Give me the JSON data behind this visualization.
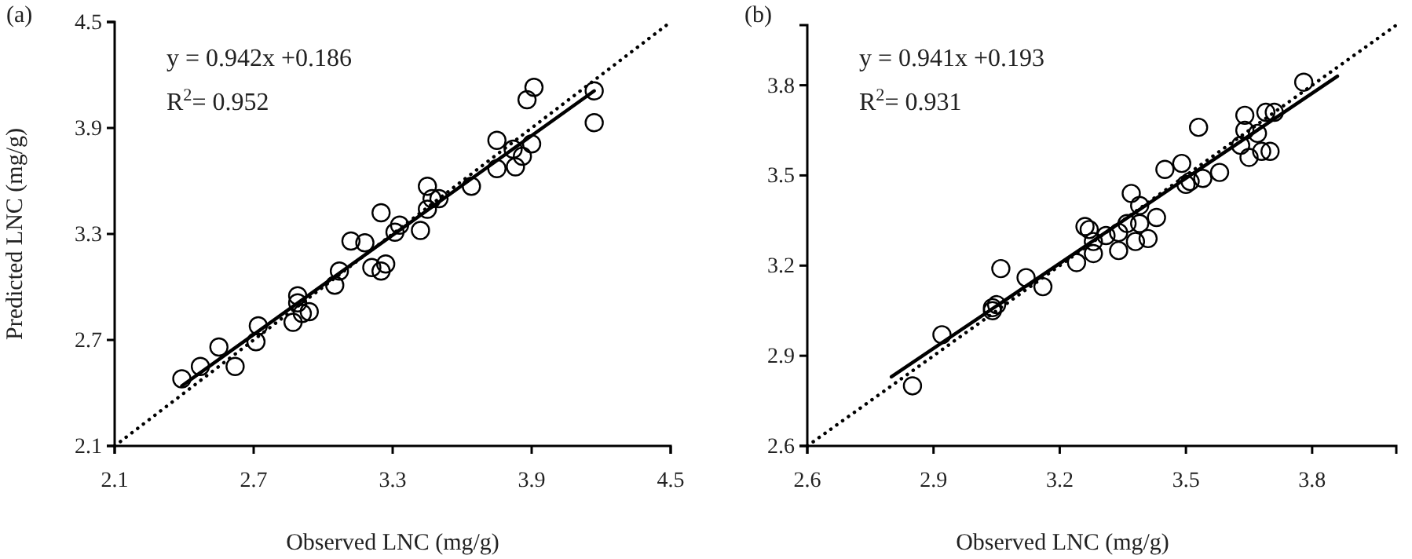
{
  "chart_data": [
    {
      "type": "scatter",
      "xlabel": "Observed LNC (mg/g)",
      "ylabel": "Predicted LNC (mg/g)",
      "xlim": [
        2.1,
        4.5
      ],
      "ylim": [
        2.1,
        4.5
      ],
      "xticks": [
        2.1,
        2.7,
        3.3,
        3.9,
        4.5
      ],
      "yticks": [
        2.1,
        2.7,
        3.3,
        3.9,
        4.5
      ],
      "grid": false,
      "annotations": [
        "(a)",
        "y = 0.942x +0.186",
        "R$^{2}$= 0.952"
      ],
      "series": [
        {
          "marker": "circle",
          "color": "#000000",
          "x": [
            2.39,
            2.47,
            2.55,
            2.62,
            2.71,
            2.72,
            2.87,
            2.89,
            2.89,
            2.91,
            2.94,
            3.05,
            3.07,
            3.12,
            3.18,
            3.25,
            3.21,
            3.27,
            3.25,
            3.31,
            3.33,
            3.42,
            3.45,
            3.45,
            3.47,
            3.5,
            3.64,
            3.75,
            3.75,
            3.82,
            3.83,
            3.86,
            3.9,
            3.88,
            3.91,
            4.17,
            4.17
          ],
          "values": [
            2.48,
            2.55,
            2.66,
            2.55,
            2.69,
            2.78,
            2.8,
            2.95,
            2.91,
            2.85,
            2.86,
            3.01,
            3.09,
            3.26,
            3.25,
            3.42,
            3.11,
            3.13,
            3.09,
            3.31,
            3.35,
            3.32,
            3.44,
            3.57,
            3.5,
            3.5,
            3.57,
            3.83,
            3.67,
            3.78,
            3.68,
            3.74,
            3.81,
            4.06,
            4.13,
            4.11,
            3.93
          ]
        },
        {
          "type": "line",
          "color": "#000000",
          "line_style": "solid",
          "x": [
            2.39,
            4.17
          ],
          "values": [
            2.44,
            4.11
          ]
        },
        {
          "type": "line",
          "color": "#000000",
          "line_style": "dotted",
          "x": [
            2.1,
            4.5
          ],
          "values": [
            2.1,
            4.5
          ]
        }
      ]
    },
    {
      "type": "scatter",
      "xlabel": "Observed LNC (mg/g)",
      "xlim": [
        2.6,
        4.0
      ],
      "ylim": [
        2.6,
        4.0
      ],
      "xticks": [
        2.6,
        2.9,
        3.2,
        3.5,
        3.8
      ],
      "yticks": [
        2.6,
        2.9,
        3.2,
        3.5,
        3.8
      ],
      "grid": false,
      "annotations": [
        "(b)",
        "y = 0.941x +0.193",
        "R$^{2}$= 0.931"
      ],
      "series": [
        {
          "marker": "circle",
          "color": "#000000",
          "x": [
            2.85,
            2.92,
            3.06,
            3.04,
            3.05,
            3.04,
            3.12,
            3.16,
            3.24,
            3.26,
            3.27,
            3.28,
            3.28,
            3.31,
            3.34,
            3.34,
            3.37,
            3.36,
            3.39,
            3.39,
            3.38,
            3.41,
            3.43,
            3.45,
            3.49,
            3.5,
            3.51,
            3.54,
            3.58,
            3.53,
            3.64,
            3.64,
            3.63,
            3.65,
            3.67,
            3.68,
            3.7,
            3.69,
            3.71,
            3.78
          ],
          "values": [
            2.8,
            2.97,
            3.19,
            3.06,
            3.07,
            3.05,
            3.16,
            3.13,
            3.21,
            3.33,
            3.32,
            3.28,
            3.24,
            3.3,
            3.25,
            3.31,
            3.44,
            3.34,
            3.4,
            3.34,
            3.28,
            3.29,
            3.36,
            3.52,
            3.54,
            3.47,
            3.48,
            3.49,
            3.51,
            3.66,
            3.7,
            3.65,
            3.6,
            3.56,
            3.64,
            3.58,
            3.58,
            3.71,
            3.71,
            3.81
          ]
        },
        {
          "type": "line",
          "color": "#000000",
          "line_style": "solid",
          "x": [
            2.8,
            3.86
          ],
          "values": [
            2.83,
            3.83
          ]
        },
        {
          "type": "line",
          "color": "#000000",
          "line_style": "dotted",
          "x": [
            2.6,
            4.0
          ],
          "values": [
            2.6,
            4.0
          ]
        }
      ]
    }
  ]
}
